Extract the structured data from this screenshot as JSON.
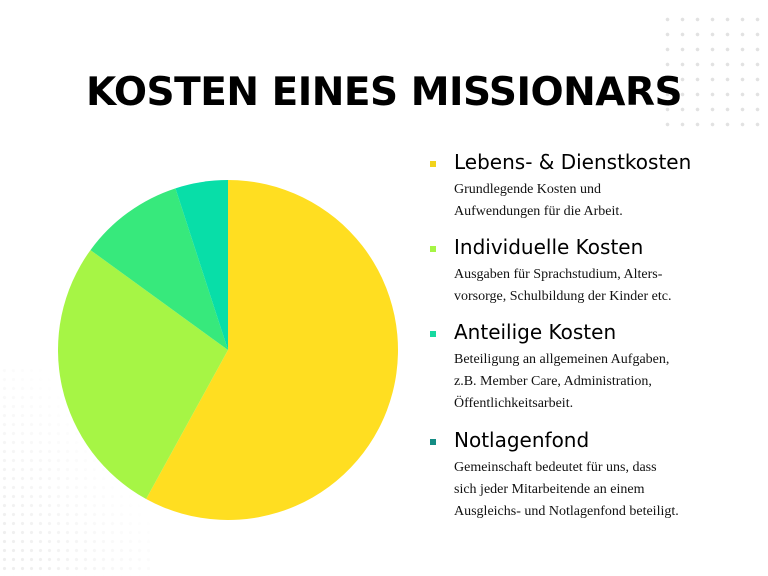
{
  "title": "KOSTEN EINES MISSIONARS",
  "chart_data": {
    "type": "pie",
    "title": "KOSTEN EINES MISSIONARS",
    "slices": [
      {
        "label": "Lebens- & Dienstkosten",
        "value": 58,
        "color": "#FFDE21"
      },
      {
        "label": "Individuelle Kosten",
        "value": 27,
        "color": "#A6F545"
      },
      {
        "label": "Anteilige Kosten",
        "value": 10,
        "color": "#37E97C"
      },
      {
        "label": "Notlagenfond",
        "value": 5,
        "color": "#08DEA8"
      }
    ]
  },
  "legend": [
    {
      "title": "Lebens- & Dienstkosten",
      "bullet_color": "#F2D31B",
      "desc": [
        "Grundlegende Kosten und",
        "Aufwendungen für die Arbeit."
      ]
    },
    {
      "title": "Individuelle Kosten",
      "bullet_color": "#A6F545",
      "desc": [
        "Ausgaben für Sprachstudium, Alters-",
        "vorsorge, Schulbildung der Kinder etc."
      ]
    },
    {
      "title": "Anteilige Kosten",
      "bullet_color": "#17D9A0",
      "desc": [
        "Beteiligung an allgemeinen Aufgaben,",
        "z.B. Member Care, Administration,",
        "Öffentlichkeitsarbeit."
      ]
    },
    {
      "title": "Notlagenfond",
      "bullet_color": "#148C84",
      "desc": [
        "Gemeinschaft bedeutet für uns, dass",
        "sich jeder Mitarbeitende an einem",
        "Ausgleichs- und Notlagenfond beteiligt."
      ]
    }
  ]
}
